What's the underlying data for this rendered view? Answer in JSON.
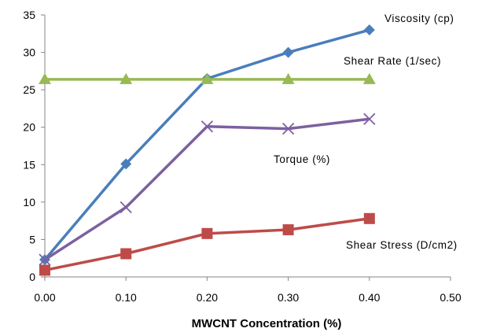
{
  "chart_data": {
    "type": "line",
    "xlabel": "MWCNT Concentration (%)",
    "ylabel": "",
    "xlim": [
      0,
      0.5
    ],
    "ylim": [
      0,
      35
    ],
    "x_ticks": [
      "0.00",
      "0.10",
      "0.20",
      "0.30",
      "0.40",
      "0.50"
    ],
    "y_ticks": [
      "0",
      "5",
      "10",
      "15",
      "20",
      "25",
      "30",
      "35"
    ],
    "grid": false,
    "legend": "inline labels next to series",
    "x": [
      0.0,
      0.1,
      0.2,
      0.3,
      0.4
    ],
    "series": [
      {
        "name": "Viscosity (cp)",
        "values": [
          2.3,
          15.1,
          26.5,
          30.0,
          33.0
        ],
        "color": "#4a7ebb",
        "marker": "diamond"
      },
      {
        "name": "Shear Rate (1/sec)",
        "values": [
          26.4,
          26.4,
          26.4,
          26.4,
          26.4
        ],
        "color": "#98b954",
        "marker": "triangle"
      },
      {
        "name": "Torque (%)",
        "values": [
          2.3,
          9.3,
          20.1,
          19.8,
          21.1
        ],
        "color": "#7d60a0",
        "marker": "x"
      },
      {
        "name": "Shear Stress (D/cm2)",
        "values": [
          0.9,
          3.1,
          5.8,
          6.3,
          7.8
        ],
        "color": "#be4b48",
        "marker": "square"
      }
    ]
  }
}
